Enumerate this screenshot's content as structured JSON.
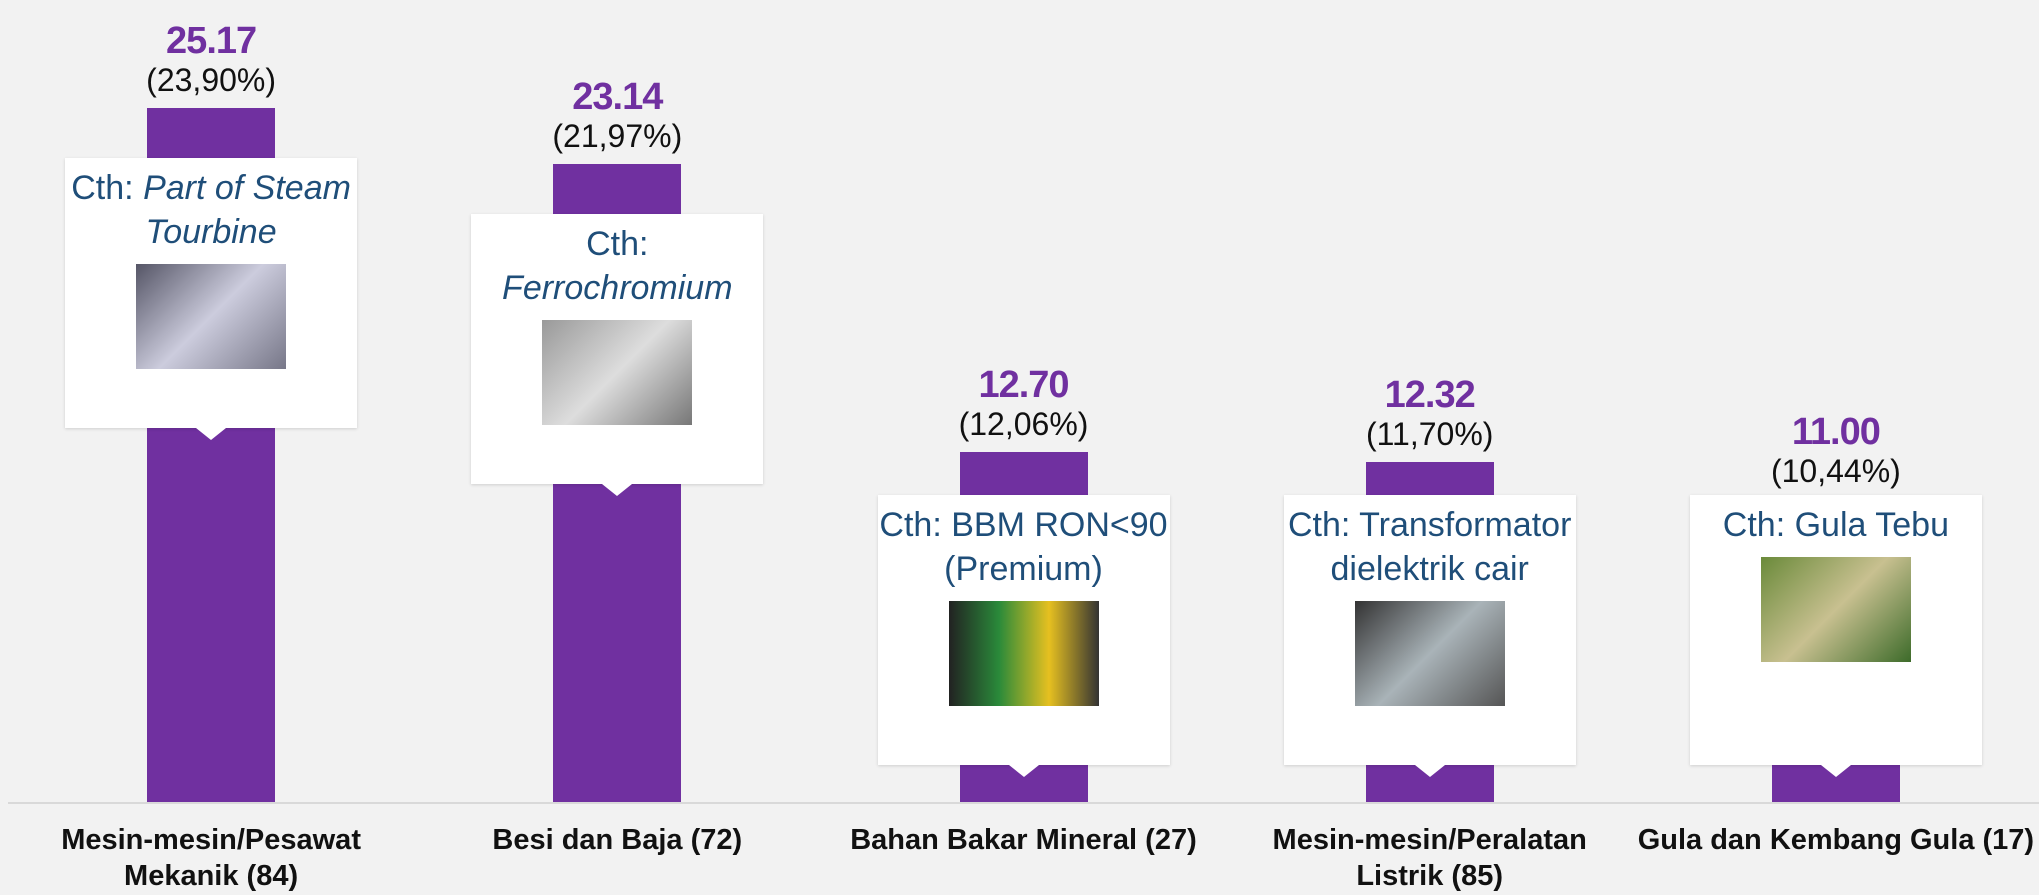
{
  "chart_data": {
    "type": "bar",
    "categories": [
      "Mesin-mesin/Pesawat Mekanik (84)",
      "Besi dan Baja (72)",
      "Bahan Bakar Mineral (27)",
      "Mesin-mesin/Peralatan Listrik (85)",
      "Gula dan Kembang Gula (17)"
    ],
    "values": [
      25.17,
      23.14,
      12.7,
      12.32,
      11.0
    ],
    "value_labels": [
      "25.17",
      "23.14",
      "12.70",
      "12.32",
      "11.00"
    ],
    "share_labels": [
      "(23,90%)",
      "(21,97%)",
      "(12,06%)",
      "(11,70%)",
      "(10,44%)"
    ],
    "examples": [
      {
        "text": "Cth:",
        "em": "Part of Steam Tourbine"
      },
      {
        "text": "Cth:",
        "em": "Ferrochromium"
      },
      {
        "text": "Cth: BBM RON<90 (Premium)"
      },
      {
        "text": "Cth: Transformator dielektrik cair"
      },
      {
        "text": "Cth: Gula Tebu"
      }
    ],
    "color": "#7030a0",
    "ylim": [
      0,
      29
    ]
  }
}
